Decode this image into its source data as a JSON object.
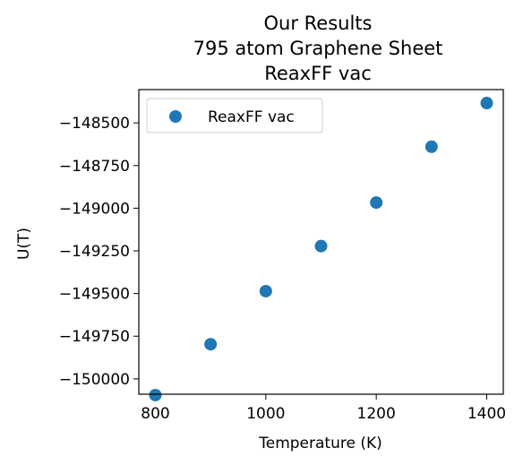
{
  "chart_data": {
    "type": "scatter",
    "title_lines": [
      "Our Results",
      "795 atom Graphene Sheet",
      "ReaxFF vac"
    ],
    "xlabel": "Temperature (K)",
    "ylabel": "U(T)",
    "xlim": [
      770,
      1430
    ],
    "ylim": [
      -150090,
      -148305
    ],
    "x_ticks": [
      800,
      1000,
      1200,
      1400
    ],
    "x_tick_labels": [
      "800",
      "1000",
      "1200",
      "1400"
    ],
    "y_ticks": [
      -150000,
      -149750,
      -149500,
      -149250,
      -149000,
      -148750,
      -148500
    ],
    "y_tick_labels": [
      "−150000",
      "−149750",
      "−149500",
      "−149250",
      "−149000",
      "−148750",
      "−148500"
    ],
    "grid": false,
    "legend_position": "top-left",
    "series": [
      {
        "name": "ReaxFF vac",
        "color": "#1f77b4",
        "marker": "circle",
        "x": [
          800,
          900,
          1000,
          1100,
          1200,
          1300,
          1400
        ],
        "y": [
          -150095,
          -149797,
          -149486,
          -149222,
          -148967,
          -148640,
          -148384
        ]
      }
    ]
  }
}
